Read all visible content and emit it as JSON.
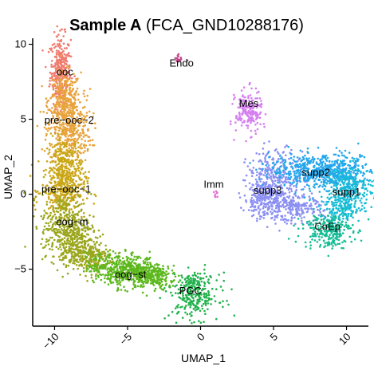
{
  "chart_data": {
    "type": "scatter",
    "title_bold": "Sample A",
    "title_rest": " (FCA_GND10288176)",
    "xlabel": "UMAP_1",
    "ylabel": "UMAP_2",
    "xlim": [
      -11.5,
      11.5
    ],
    "ylim": [
      -8.8,
      10.4
    ],
    "xticks": [
      -10,
      -5,
      0,
      5,
      10
    ],
    "yticks": [
      -5,
      0,
      5,
      10
    ],
    "xtick_labels": [
      "−10",
      "−5",
      "0",
      "5",
      "10"
    ],
    "ytick_labels": [
      "−5",
      "0",
      "5",
      "10"
    ],
    "grid": false,
    "legend": "none",
    "clusters": [
      {
        "name": "ooc",
        "color": "#f07b6f",
        "label_xy": [
          -9.3,
          8.1
        ],
        "blobs": [
          [
            -9.6,
            8.2,
            0.35,
            1.2,
            320
          ]
        ]
      },
      {
        "name": "pre−ooc−2",
        "color": "#e8a33c",
        "label_xy": [
          -9.0,
          4.9
        ],
        "blobs": [
          [
            -9.3,
            6.3,
            0.55,
            0.9,
            260
          ],
          [
            -9.0,
            4.3,
            0.75,
            1.1,
            380
          ]
        ]
      },
      {
        "name": "pre−ooc−1",
        "color": "#c9a615",
        "label_xy": [
          -9.2,
          0.3
        ],
        "blobs": [
          [
            -9.3,
            1.8,
            0.6,
            1.0,
            280
          ],
          [
            -9.4,
            0.2,
            0.75,
            0.8,
            300
          ]
        ]
      },
      {
        "name": "oog−m",
        "color": "#9aa61c",
        "label_xy": [
          -8.8,
          -1.9
        ],
        "blobs": [
          [
            -9.2,
            -2.0,
            0.85,
            1.0,
            320
          ],
          [
            -8.6,
            -3.4,
            0.8,
            0.7,
            250
          ],
          [
            -7.6,
            -4.3,
            0.8,
            0.5,
            180
          ]
        ]
      },
      {
        "name": "oog−st",
        "color": "#5cb81c",
        "label_xy": [
          -4.8,
          -5.4
        ],
        "blobs": [
          [
            -5.8,
            -4.9,
            1.0,
            0.5,
            260
          ],
          [
            -4.3,
            -5.2,
            1.0,
            0.5,
            280
          ],
          [
            -3.3,
            -5.6,
            0.8,
            0.4,
            160
          ]
        ]
      },
      {
        "name": "PGC",
        "color": "#22b14c",
        "label_xy": [
          -0.7,
          -6.5
        ],
        "blobs": [
          [
            -0.4,
            -6.8,
            0.85,
            0.75,
            240
          ],
          [
            -0.6,
            -6.0,
            0.4,
            0.3,
            60
          ]
        ]
      },
      {
        "name": "Endo",
        "color": "#c2458c",
        "label_xy": [
          -1.3,
          8.7
        ],
        "blobs": [
          [
            -1.5,
            9.1,
            0.14,
            0.2,
            14
          ]
        ]
      },
      {
        "name": "Mes",
        "color": "#d57ff0",
        "label_xy": [
          3.3,
          6.0
        ],
        "blobs": [
          [
            3.3,
            5.5,
            0.45,
            0.7,
            200
          ]
        ]
      },
      {
        "name": "Imm",
        "color": "#e770d4",
        "label_xy": [
          0.9,
          0.6
        ],
        "blobs": [
          [
            1.0,
            0.0,
            0.12,
            0.1,
            8
          ]
        ]
      },
      {
        "name": "supp3",
        "color": "#8b8ff2",
        "label_xy": [
          4.6,
          0.2
        ],
        "blobs": [
          [
            5.2,
            0.8,
            1.0,
            1.1,
            380
          ],
          [
            4.4,
            -0.4,
            0.7,
            0.6,
            200
          ],
          [
            6.6,
            -1.0,
            0.9,
            0.4,
            160
          ]
        ]
      },
      {
        "name": "supp2",
        "color": "#24a7ec",
        "label_xy": [
          7.9,
          1.4
        ],
        "blobs": [
          [
            7.6,
            1.6,
            1.4,
            0.55,
            380
          ],
          [
            9.6,
            1.4,
            1.0,
            0.6,
            250
          ]
        ]
      },
      {
        "name": "supp1",
        "color": "#16bcd6",
        "label_xy": [
          10.0,
          0.1
        ],
        "blobs": [
          [
            10.2,
            0.3,
            0.8,
            0.8,
            260
          ],
          [
            9.6,
            -1.0,
            0.7,
            0.5,
            140
          ]
        ]
      },
      {
        "name": "CoEp",
        "color": "#14bc95",
        "label_xy": [
          8.7,
          -2.2
        ],
        "blobs": [
          [
            8.7,
            -2.4,
            0.85,
            0.6,
            240
          ]
        ]
      }
    ]
  }
}
